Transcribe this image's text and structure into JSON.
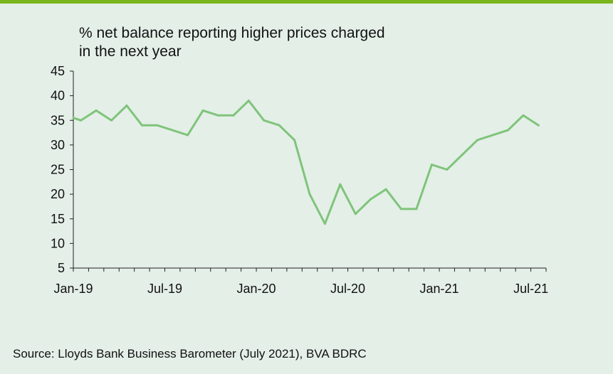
{
  "colors": {
    "accent_bar": "#7ab51d",
    "background": "#e4efe8",
    "line": "#7fc47a",
    "axis": "#222222"
  },
  "chart_data": {
    "type": "line",
    "title_lines": [
      "% net balance reporting higher prices charged",
      "in the next year"
    ],
    "xlabel": "",
    "ylabel": "",
    "ylim": [
      5,
      45
    ],
    "y_ticks": [
      5,
      10,
      15,
      20,
      25,
      30,
      35,
      40,
      45
    ],
    "x_tick_labels": [
      "Jan-19",
      "Jul-19",
      "Jan-20",
      "Jul-20",
      "Jan-21",
      "Jul-21"
    ],
    "x_tick_label_index": [
      0,
      6,
      12,
      18,
      24,
      30
    ],
    "grid": false,
    "series": [
      {
        "name": "",
        "x": [
          0,
          0.5,
          1.5,
          2.5,
          3.5,
          4.5,
          5.5,
          7.5,
          8.5,
          9.5,
          10.5,
          11.5,
          12.5,
          13.5,
          14.5,
          15.5,
          16.5,
          17.5,
          18.5,
          19.5,
          20.5,
          21.5,
          22.5,
          23.5,
          24.5,
          25.5,
          26.5,
          28.5,
          29.5,
          30.5
        ],
        "values": [
          35.5,
          35,
          37,
          35,
          38,
          34,
          34,
          32,
          37,
          36,
          36,
          39,
          35,
          34,
          31,
          20,
          14,
          22,
          16,
          19,
          21,
          17,
          17,
          26,
          25,
          28,
          31,
          33,
          36,
          34
        ]
      }
    ]
  },
  "source": "Source: Lloyds Bank Business Barometer (July 2021), BVA BDRC"
}
